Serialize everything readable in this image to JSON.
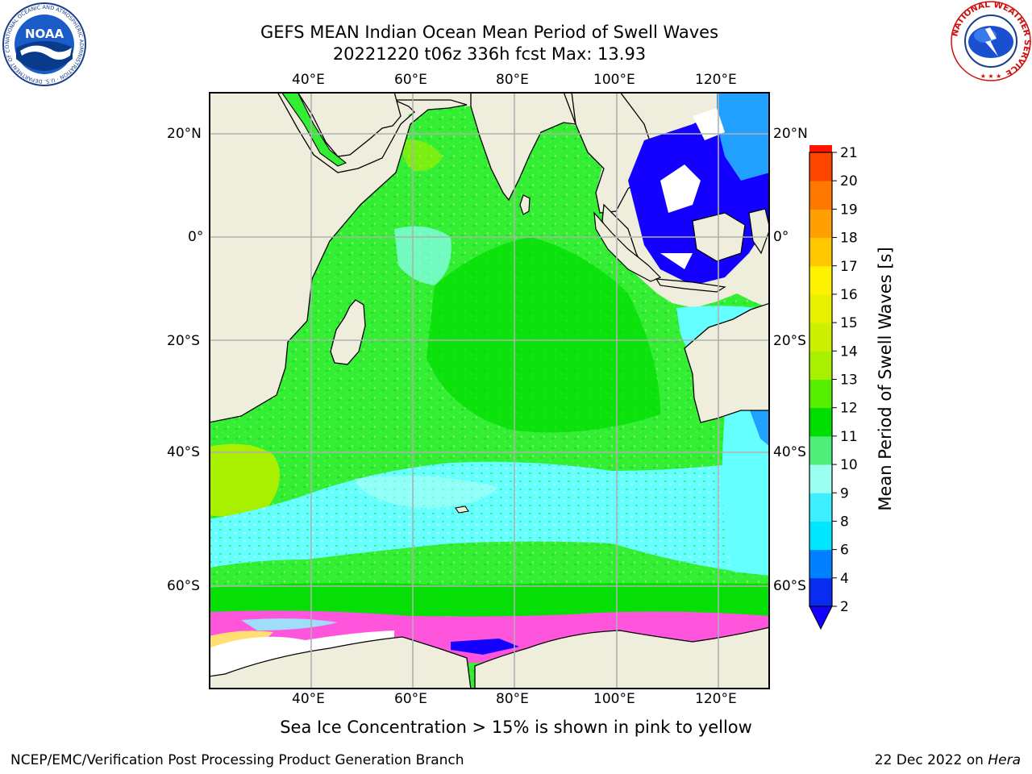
{
  "title_line1": "GEFS MEAN Indian Ocean Mean Period of Swell Waves",
  "title_line2": "20221220 t06z 336h fcst   Max: 13.93",
  "lon_labels": [
    "40°E",
    "60°E",
    "80°E",
    "100°E",
    "120°E"
  ],
  "lat_labels": [
    "20°N",
    "0°",
    "20°S",
    "40°S",
    "60°S"
  ],
  "colorbar": {
    "label": "Mean Period of Swell Waves [s]",
    "ticks": [
      "2",
      "4",
      "6",
      "8",
      "9",
      "10",
      "11",
      "12",
      "13",
      "14",
      "15",
      "16",
      "17",
      "18",
      "19",
      "20",
      "21"
    ],
    "colors": [
      "#0a2cf0",
      "#0080ff",
      "#00e6ff",
      "#3ef0ff",
      "#9bfff2",
      "#4fee7a",
      "#00dd00",
      "#55ee00",
      "#a8f000",
      "#ccf000",
      "#e8f000",
      "#fff200",
      "#ffc800",
      "#ffa000",
      "#ff7800",
      "#ff4600",
      "#ff1200"
    ],
    "under_color": "#1400ff"
  },
  "caption": "Sea Ice Concentration > 15% is shown in pink to yellow",
  "footer_left": "NCEP/EMC/Verification Post Processing Product Generation Branch",
  "footer_date": "22 Dec 2022 on",
  "footer_machine": "Hera",
  "logos": {
    "noaa_text": "NOAA",
    "noaa_ring": "NATIONAL OCEANIC AND ATMOSPHERIC ADMINISTRATION · U.S. DEPARTMENT OF COMMERCE",
    "nws_ring": "NATIONAL WEATHER SERVICE"
  },
  "colors": {
    "land": "#efeedd",
    "ocean_main": "#33ee33",
    "ocean_bright": "#00dd00",
    "swell_cyan": "#66ffff",
    "swell_light": "#99fff0",
    "deep_blue": "#1400ff",
    "ice_pink": "#ff55dd",
    "ice_yellow": "#ffff66",
    "grid": "#b0b0b0"
  }
}
